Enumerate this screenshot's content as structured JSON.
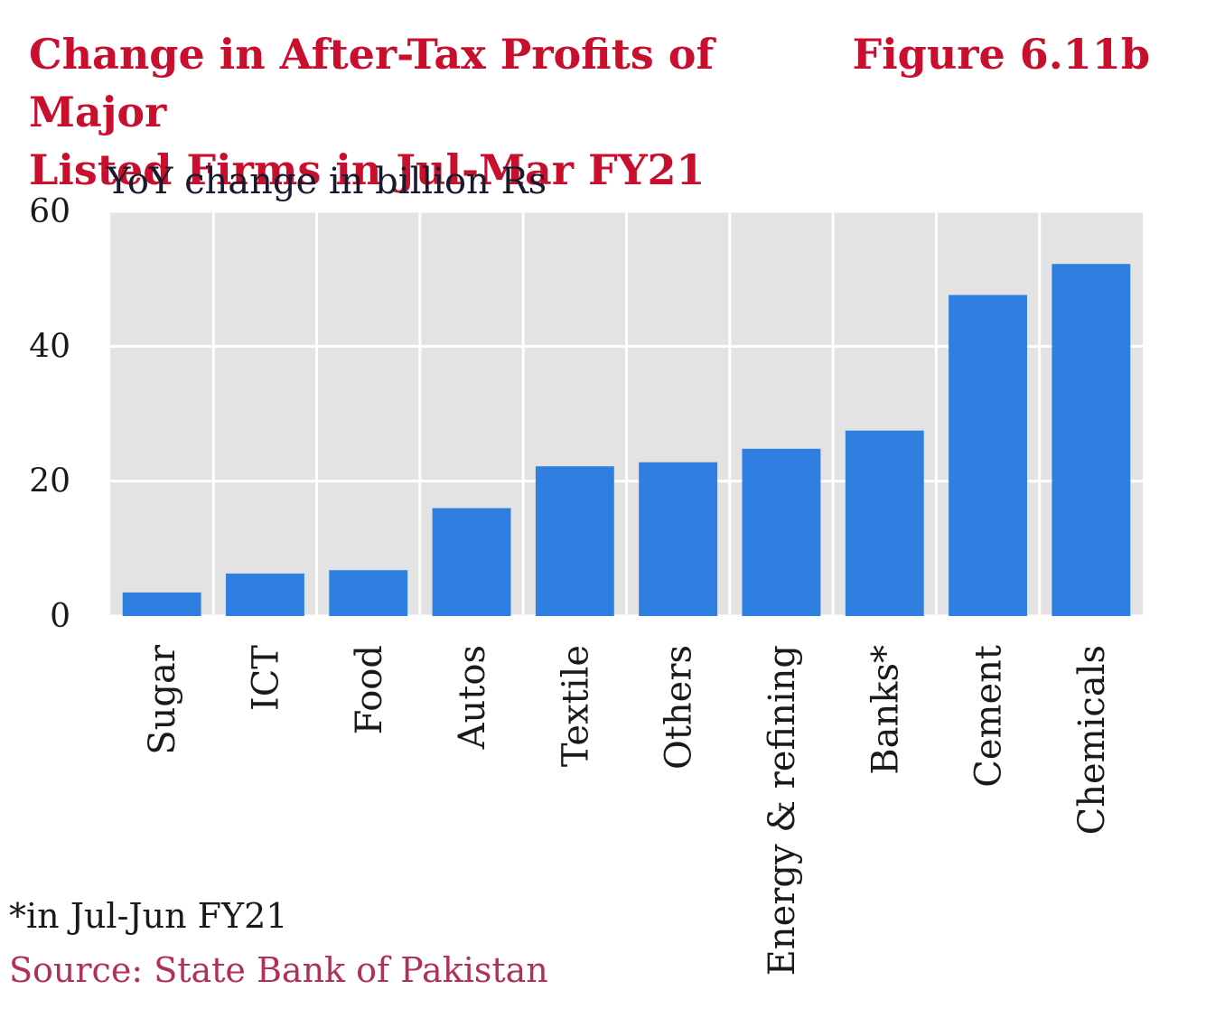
{
  "header": {
    "title_line1": "Change in After-Tax Profits of Major",
    "title_line2": "Listed Firms in Jul-Mar FY21",
    "figure_label": "Figure 6.11b"
  },
  "colors": {
    "title": "#c8102e",
    "bar": "#2f7fe0",
    "plot_bg": "#e3e3e3",
    "grid": "#ffffff",
    "source": "#b0305a"
  },
  "chart_data": {
    "type": "bar",
    "ylabel": "YoY change in billion Rs",
    "categories": [
      "Sugar",
      "ICT",
      "Food",
      "Autos",
      "Textile",
      "Others",
      "Energy & refining",
      "Banks*",
      "Cement",
      "Chemicals"
    ],
    "values": [
      3.5,
      6.3,
      6.8,
      16.0,
      22.2,
      22.8,
      24.8,
      27.5,
      47.6,
      52.2
    ],
    "ylim": [
      0,
      60
    ],
    "yticks": [
      0,
      20,
      40,
      60
    ],
    "grid": true,
    "legend": "none"
  },
  "footnote": "*in Jul-Jun FY21",
  "source": "Source: State Bank of Pakistan"
}
